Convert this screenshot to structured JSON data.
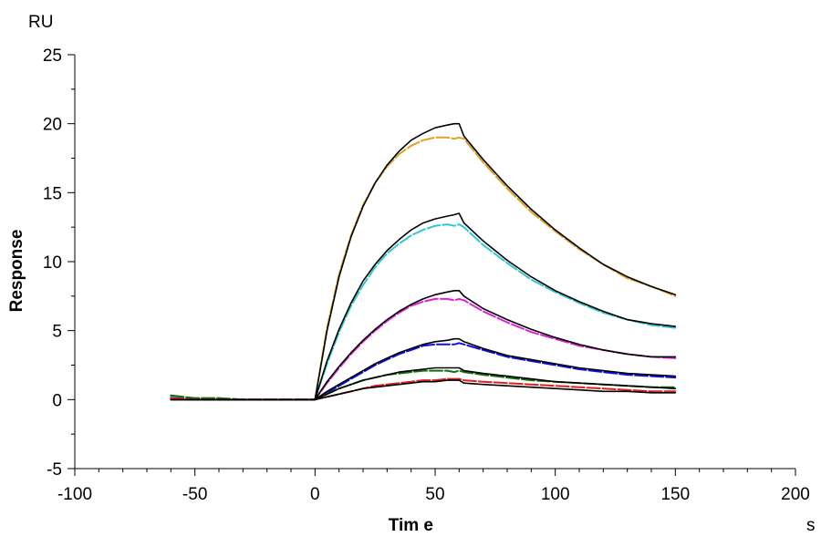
{
  "chart_data": {
    "type": "line",
    "title": "",
    "xlabel": "Tim e",
    "ylabel": "Response",
    "x_unit": "s",
    "y_unit": "RU",
    "xlim": [
      -100,
      200
    ],
    "ylim": [
      -5,
      25
    ],
    "x_ticks": [
      -100,
      -50,
      0,
      50,
      100,
      150,
      200
    ],
    "y_ticks": [
      -5,
      0,
      5,
      10,
      15,
      20,
      25
    ],
    "x_tick_labels": [
      "-100",
      "-50",
      "0",
      "50",
      "100",
      "150",
      "200"
    ],
    "y_tick_labels": [
      "-5",
      "0",
      "5",
      "10",
      "15",
      "20",
      "25"
    ],
    "grid": false,
    "legend": "none",
    "association_start": 0,
    "dissociation_start": 60,
    "series": [
      {
        "color": "#E0A020",
        "role": "measured",
        "x": [
          -60,
          -50,
          -40,
          -30,
          -20,
          -10,
          0,
          5,
          10,
          15,
          20,
          25,
          30,
          35,
          40,
          45,
          50,
          55,
          58,
          60,
          62,
          70,
          80,
          90,
          100,
          110,
          120,
          130,
          140,
          150
        ],
        "y": [
          0.3,
          0.1,
          0.1,
          0.0,
          0.0,
          0.0,
          0.0,
          5.2,
          9.1,
          11.9,
          14.1,
          15.7,
          16.9,
          17.8,
          18.4,
          18.8,
          19.0,
          19.0,
          18.9,
          19.0,
          18.9,
          17.2,
          15.3,
          13.6,
          12.2,
          10.9,
          9.8,
          8.8,
          8.2,
          7.5
        ]
      },
      {
        "color": "#000000",
        "role": "fit",
        "x": [
          -60,
          -50,
          -40,
          -30,
          -20,
          -10,
          0,
          5,
          10,
          15,
          20,
          25,
          30,
          35,
          40,
          45,
          50,
          55,
          58,
          60,
          62,
          70,
          80,
          90,
          100,
          110,
          120,
          130,
          140,
          150
        ],
        "y": [
          0.0,
          0.0,
          0.0,
          0.0,
          0.0,
          0.0,
          0.0,
          5.0,
          8.9,
          11.8,
          14.0,
          15.7,
          17.0,
          18.0,
          18.8,
          19.3,
          19.7,
          19.9,
          20.0,
          20.0,
          19.1,
          17.4,
          15.5,
          13.8,
          12.3,
          11.0,
          9.8,
          8.9,
          8.2,
          7.6
        ]
      },
      {
        "color": "#30C8D0",
        "role": "measured",
        "x": [
          -60,
          -50,
          -40,
          -30,
          -20,
          -10,
          0,
          5,
          10,
          15,
          20,
          25,
          30,
          35,
          40,
          45,
          50,
          55,
          58,
          60,
          62,
          70,
          80,
          90,
          100,
          110,
          120,
          130,
          140,
          150
        ],
        "y": [
          0.2,
          0.1,
          0.1,
          0.0,
          0.0,
          0.0,
          0.0,
          2.6,
          4.9,
          6.8,
          8.3,
          9.6,
          10.6,
          11.3,
          11.9,
          12.3,
          12.6,
          12.7,
          12.6,
          12.7,
          12.5,
          11.2,
          9.9,
          8.7,
          7.8,
          7.0,
          6.3,
          5.8,
          5.4,
          5.2
        ]
      },
      {
        "color": "#000000",
        "role": "fit",
        "x": [
          -60,
          -50,
          -40,
          -30,
          -20,
          -10,
          0,
          5,
          10,
          15,
          20,
          25,
          30,
          35,
          40,
          45,
          50,
          55,
          58,
          60,
          62,
          70,
          80,
          90,
          100,
          110,
          120,
          130,
          140,
          150
        ],
        "y": [
          0.0,
          0.0,
          0.0,
          0.0,
          0.0,
          0.0,
          0.0,
          2.8,
          5.1,
          7.0,
          8.6,
          9.8,
          10.8,
          11.6,
          12.3,
          12.8,
          13.1,
          13.3,
          13.4,
          13.5,
          12.8,
          11.5,
          10.1,
          8.9,
          7.9,
          7.1,
          6.4,
          5.8,
          5.5,
          5.3
        ]
      },
      {
        "color": "#E020D8",
        "role": "measured",
        "x": [
          -60,
          -50,
          -40,
          -30,
          -20,
          -10,
          0,
          5,
          10,
          15,
          20,
          25,
          30,
          35,
          40,
          45,
          50,
          55,
          58,
          60,
          62,
          70,
          80,
          90,
          100,
          110,
          120,
          130,
          140,
          150
        ],
        "y": [
          0.1,
          0.1,
          0.0,
          0.0,
          0.0,
          0.0,
          0.0,
          1.2,
          2.3,
          3.3,
          4.2,
          5.0,
          5.7,
          6.3,
          6.8,
          7.1,
          7.3,
          7.3,
          7.2,
          7.3,
          7.2,
          6.4,
          5.6,
          4.9,
          4.4,
          3.9,
          3.6,
          3.3,
          3.1,
          3.0
        ]
      },
      {
        "color": "#000000",
        "role": "fit",
        "x": [
          -60,
          -50,
          -40,
          -30,
          -20,
          -10,
          0,
          5,
          10,
          15,
          20,
          25,
          30,
          35,
          40,
          45,
          50,
          55,
          58,
          60,
          62,
          70,
          80,
          90,
          100,
          110,
          120,
          130,
          140,
          150
        ],
        "y": [
          0.0,
          0.0,
          0.0,
          0.0,
          0.0,
          0.0,
          0.0,
          1.3,
          2.4,
          3.4,
          4.3,
          5.1,
          5.8,
          6.4,
          6.9,
          7.3,
          7.6,
          7.8,
          7.9,
          7.9,
          7.5,
          6.6,
          5.8,
          5.1,
          4.5,
          4.0,
          3.6,
          3.3,
          3.1,
          3.1
        ]
      },
      {
        "color": "#1010E0",
        "role": "measured",
        "x": [
          -60,
          -50,
          -40,
          -30,
          -20,
          -10,
          0,
          5,
          10,
          15,
          20,
          25,
          30,
          35,
          40,
          45,
          50,
          55,
          58,
          60,
          62,
          70,
          80,
          90,
          100,
          110,
          120,
          130,
          140,
          150
        ],
        "y": [
          0.1,
          0.0,
          0.0,
          0.0,
          0.0,
          0.0,
          0.0,
          0.5,
          1.0,
          1.5,
          2.0,
          2.5,
          2.9,
          3.3,
          3.6,
          3.9,
          4.0,
          4.0,
          4.0,
          4.1,
          4.0,
          3.6,
          3.1,
          2.8,
          2.5,
          2.2,
          2.0,
          1.8,
          1.7,
          1.6
        ]
      },
      {
        "color": "#000000",
        "role": "fit",
        "x": [
          -60,
          -50,
          -40,
          -30,
          -20,
          -10,
          0,
          5,
          10,
          15,
          20,
          25,
          30,
          35,
          40,
          45,
          50,
          55,
          58,
          60,
          62,
          70,
          80,
          90,
          100,
          110,
          120,
          130,
          140,
          150
        ],
        "y": [
          0.0,
          0.0,
          0.0,
          0.0,
          0.0,
          0.0,
          0.0,
          0.6,
          1.1,
          1.6,
          2.1,
          2.6,
          3.0,
          3.4,
          3.7,
          4.0,
          4.2,
          4.3,
          4.4,
          4.4,
          4.2,
          3.7,
          3.2,
          2.9,
          2.6,
          2.3,
          2.1,
          1.9,
          1.8,
          1.7
        ]
      },
      {
        "color": "#107010",
        "role": "measured",
        "x": [
          -60,
          -50,
          -40,
          -30,
          -20,
          -10,
          0,
          5,
          10,
          15,
          20,
          25,
          30,
          35,
          40,
          45,
          50,
          55,
          58,
          60,
          62,
          70,
          80,
          90,
          100,
          110,
          120,
          130,
          140,
          150
        ],
        "y": [
          0.3,
          0.1,
          0.1,
          0.0,
          0.0,
          0.0,
          0.0,
          0.4,
          0.8,
          1.1,
          1.4,
          1.6,
          1.8,
          1.9,
          2.0,
          2.1,
          2.1,
          2.1,
          2.0,
          2.1,
          2.0,
          1.8,
          1.6,
          1.4,
          1.3,
          1.2,
          1.1,
          1.0,
          0.9,
          0.9
        ]
      },
      {
        "color": "#000000",
        "role": "fit",
        "x": [
          -60,
          -50,
          -40,
          -30,
          -20,
          -10,
          0,
          5,
          10,
          15,
          20,
          25,
          30,
          35,
          40,
          45,
          50,
          55,
          58,
          60,
          62,
          70,
          80,
          90,
          100,
          110,
          120,
          130,
          140,
          150
        ],
        "y": [
          0.0,
          0.0,
          0.0,
          0.0,
          0.0,
          0.0,
          0.0,
          0.4,
          0.8,
          1.1,
          1.4,
          1.6,
          1.8,
          2.0,
          2.1,
          2.2,
          2.3,
          2.3,
          2.3,
          2.3,
          2.1,
          1.9,
          1.7,
          1.5,
          1.3,
          1.2,
          1.1,
          1.0,
          0.9,
          0.8
        ]
      },
      {
        "color": "#E02020",
        "role": "measured",
        "x": [
          -60,
          -50,
          -40,
          -30,
          -20,
          -10,
          0,
          5,
          10,
          15,
          20,
          25,
          30,
          35,
          40,
          45,
          50,
          55,
          58,
          60,
          62,
          70,
          80,
          90,
          100,
          110,
          120,
          130,
          140,
          150
        ],
        "y": [
          0.1,
          0.0,
          0.0,
          0.0,
          0.0,
          0.0,
          0.0,
          0.2,
          0.4,
          0.6,
          0.8,
          1.0,
          1.1,
          1.2,
          1.3,
          1.4,
          1.4,
          1.5,
          1.5,
          1.5,
          1.4,
          1.3,
          1.2,
          1.1,
          1.0,
          0.9,
          0.8,
          0.7,
          0.6,
          0.6
        ]
      },
      {
        "color": "#000000",
        "role": "fit",
        "x": [
          -60,
          -50,
          -40,
          -30,
          -20,
          -10,
          0,
          5,
          10,
          15,
          20,
          25,
          30,
          35,
          40,
          45,
          50,
          55,
          58,
          60,
          62,
          70,
          80,
          90,
          100,
          110,
          120,
          130,
          140,
          150
        ],
        "y": [
          0.0,
          0.0,
          0.0,
          0.0,
          0.0,
          0.0,
          0.0,
          0.2,
          0.4,
          0.6,
          0.8,
          0.9,
          1.0,
          1.1,
          1.2,
          1.3,
          1.3,
          1.4,
          1.4,
          1.4,
          1.2,
          1.1,
          1.0,
          0.9,
          0.8,
          0.7,
          0.6,
          0.6,
          0.5,
          0.5
        ]
      }
    ]
  }
}
